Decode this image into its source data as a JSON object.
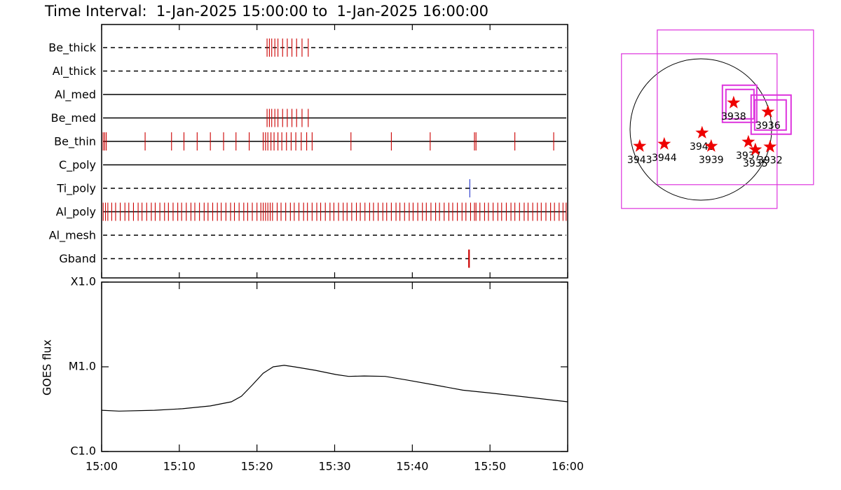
{
  "chart_data": [
    {
      "type": "event",
      "title": "Time Interval:  1-Jan-2025 15:00:00 to  1-Jan-2025 16:00:00",
      "xlim": [
        0,
        60
      ],
      "xticks": [
        0,
        10,
        20,
        30,
        40,
        50,
        60
      ],
      "rows": [
        {
          "name": "Be_thick",
          "style": "dashed",
          "color": "#cc0000",
          "values": [
            21.3,
            21.6,
            21.9,
            22.3,
            22.7,
            23.3,
            23.9,
            24.5,
            25.1,
            25.8,
            26.6
          ]
        },
        {
          "name": "Al_thick",
          "style": "dashed",
          "color": "#cc0000",
          "values": []
        },
        {
          "name": "Al_med",
          "style": "solid",
          "color": "#cc0000",
          "values": []
        },
        {
          "name": "Be_med",
          "style": "solid",
          "color": "#cc0000",
          "values": [
            21.3,
            21.6,
            21.9,
            22.3,
            22.7,
            23.3,
            23.9,
            24.5,
            25.1,
            25.8,
            26.6
          ]
        },
        {
          "name": "Be_thin",
          "style": "solid",
          "color": "#cc0000",
          "values": [
            0.2,
            0.4,
            0.6,
            5.6,
            9.0,
            10.6,
            12.3,
            14.0,
            15.7,
            17.3,
            19.0,
            20.8,
            21.1,
            21.4,
            21.8,
            22.2,
            22.7,
            23.2,
            23.8,
            24.4,
            25.0,
            25.7,
            26.4,
            27.1,
            32.1,
            37.3,
            42.3,
            48.0,
            48.2,
            53.2,
            58.2
          ]
        },
        {
          "name": "C_poly",
          "style": "solid",
          "color": "#cc0000",
          "values": []
        },
        {
          "name": "Ti_poly",
          "style": "dashed",
          "color": "#2233cc",
          "values": [
            47.4
          ]
        },
        {
          "name": "Al_poly",
          "style": "solid",
          "color": "#cc0000",
          "values": [
            0.2,
            0.5,
            0.8,
            1.3,
            1.8,
            2.4,
            3.0,
            3.5,
            4.1,
            4.7,
            5.2,
            5.8,
            6.4,
            6.9,
            7.5,
            8.1,
            8.6,
            9.2,
            9.8,
            10.3,
            10.9,
            11.5,
            12.0,
            12.6,
            13.2,
            13.7,
            14.3,
            14.9,
            15.4,
            16.0,
            16.6,
            17.1,
            17.7,
            18.3,
            18.8,
            19.4,
            20.0,
            20.5,
            20.8,
            21.1,
            21.4,
            21.7,
            22.0,
            22.6,
            23.1,
            23.7,
            24.3,
            24.8,
            25.4,
            26.0,
            26.5,
            27.1,
            27.7,
            28.2,
            28.8,
            29.4,
            29.9,
            30.5,
            31.1,
            31.6,
            32.2,
            32.8,
            33.3,
            33.9,
            34.5,
            35.0,
            35.6,
            36.2,
            36.7,
            37.3,
            37.9,
            38.4,
            39.0,
            39.6,
            40.1,
            40.7,
            41.3,
            41.8,
            42.4,
            43.0,
            43.5,
            44.1,
            44.7,
            45.2,
            45.8,
            46.4,
            46.9,
            47.5,
            48.0,
            48.2,
            48.7,
            49.3,
            49.8,
            50.4,
            51.0,
            51.5,
            52.1,
            52.7,
            53.2,
            53.8,
            54.4,
            54.9,
            55.5,
            56.1,
            56.6,
            57.2,
            57.8,
            58.3,
            58.9,
            59.4,
            59.8
          ]
        },
        {
          "name": "Al_mesh",
          "style": "dashed",
          "color": "#cc0000",
          "values": []
        },
        {
          "name": "Gband",
          "style": "dashed",
          "color": "#cc0000",
          "values": [
            47.3
          ]
        }
      ]
    },
    {
      "type": "line",
      "y_label": "GOES flux",
      "log_y": true,
      "color": "#000000",
      "xlim": [
        0,
        60
      ],
      "xticks": [
        {
          "value": 0,
          "label": "15:00"
        },
        {
          "value": 10,
          "label": "15:10"
        },
        {
          "value": 20,
          "label": "15:20"
        },
        {
          "value": 30,
          "label": "15:30"
        },
        {
          "value": 40,
          "label": "15:40"
        },
        {
          "value": 50,
          "label": "15:50"
        },
        {
          "value": 60,
          "label": "16:00"
        }
      ],
      "ylim": [
        1e-06,
        0.0001
      ],
      "yticks": [
        {
          "value": 1e-06,
          "label": "C1.0"
        },
        {
          "value": 1e-05,
          "label": "M1.0"
        },
        {
          "value": 0.0001,
          "label": "X1.0"
        }
      ],
      "x": [
        0,
        2.25,
        6.8,
        10.4,
        14,
        16.7,
        18,
        19.4,
        20.8,
        22.1,
        23.5,
        24.8,
        27.5,
        30.2,
        31.8,
        33.8,
        36.5,
        39.2,
        42.9,
        46.5,
        50.1,
        54.6,
        60
      ],
      "values": [
        3.07e-06,
        3e-06,
        3.07e-06,
        3.2e-06,
        3.45e-06,
        3.86e-06,
        4.5e-06,
        6.1e-06,
        8.4e-06,
        1e-05,
        1.04e-05,
        1e-05,
        9.1e-06,
        8.1e-06,
        7.7e-06,
        7.8e-06,
        7.7e-06,
        7e-06,
        6.1e-06,
        5.3e-06,
        4.9e-06,
        4.4e-06,
        3.86e-06
      ]
    },
    {
      "type": "map",
      "xlim": [
        -1200,
        1680
      ],
      "ylim": [
        -1100,
        1440
      ],
      "star_color": "#ee0000",
      "box_color": "#dd33dd",
      "points": [
        {
          "label": "3943",
          "x": -837,
          "y": -231
        },
        {
          "label": "3944",
          "x": -500,
          "y": -202
        },
        {
          "label": "3941",
          "x": 19,
          "y": -48
        },
        {
          "label": "3939",
          "x": 144,
          "y": -231
        },
        {
          "label": "3938",
          "x": 452,
          "y": 365
        },
        {
          "label": "3936",
          "x": 923,
          "y": 240
        },
        {
          "label": "3937",
          "x": 654,
          "y": -173
        },
        {
          "label": "3935",
          "x": 750,
          "y": -279
        },
        {
          "label": "3932",
          "x": 952,
          "y": -240
        }
      ],
      "boxes": [
        [
          -596,
          1365,
          1548,
          -760
        ],
        [
          -1087,
          1038,
          1048,
          -1087
        ],
        [
          298,
          606,
          769,
          96
        ],
        [
          346,
          548,
          731,
          144
        ],
        [
          692,
          471,
          1240,
          -67
        ],
        [
          740,
          404,
          1173,
          -10
        ]
      ]
    }
  ]
}
